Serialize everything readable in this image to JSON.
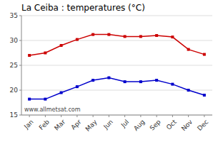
{
  "chart_data": {
    "type": "line",
    "title": "La Ceiba : temperatures (°C)",
    "categories": [
      "Jan",
      "Feb",
      "Mar",
      "Apr",
      "May",
      "Jun",
      "Jul",
      "Aug",
      "Sep",
      "Oct",
      "Nov",
      "Dec"
    ],
    "series": [
      {
        "color": "#cc0000",
        "marker": "square",
        "values": [
          27.0,
          27.5,
          29.0,
          30.2,
          31.2,
          31.2,
          30.8,
          30.8,
          31.0,
          30.7,
          28.2,
          27.2
        ]
      },
      {
        "color": "#0000cc",
        "marker": "square",
        "values": [
          18.2,
          18.2,
          19.5,
          20.7,
          22.0,
          22.5,
          21.7,
          21.7,
          22.0,
          21.2,
          20.0,
          19.0
        ]
      }
    ],
    "ylim": [
      15,
      35
    ],
    "yticks": [
      15,
      20,
      25,
      30,
      35
    ],
    "grid": true,
    "annotations": [
      "www.allmetsat.com"
    ]
  }
}
